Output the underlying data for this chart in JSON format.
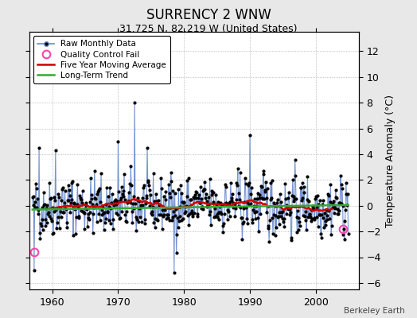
{
  "title": "SURRENCY 2 WNW",
  "subtitle": "31.725 N, 82.219 W (United States)",
  "credit": "Berkeley Earth",
  "ylabel": "Temperature Anomaly (°C)",
  "xlim": [
    1956.5,
    2006.5
  ],
  "ylim": [
    -6.5,
    13.5
  ],
  "yticks": [
    -6,
    -4,
    -2,
    0,
    2,
    4,
    6,
    8,
    10,
    12
  ],
  "xticks": [
    1960,
    1970,
    1980,
    1990,
    2000
  ],
  "bg_color": "#e8e8e8",
  "plot_bg_color": "#ffffff",
  "raw_line_color": "#6688cc",
  "raw_dot_color": "#000000",
  "ma_color": "#cc0000",
  "trend_color": "#33aa33",
  "qc_fail_color": "#ff44aa",
  "seed": 42,
  "start_year": 1957,
  "end_year": 2004,
  "trend_value": -0.15,
  "qc_fail_points": [
    [
      1957.25,
      -3.6
    ],
    [
      2004.08,
      -1.8
    ]
  ]
}
